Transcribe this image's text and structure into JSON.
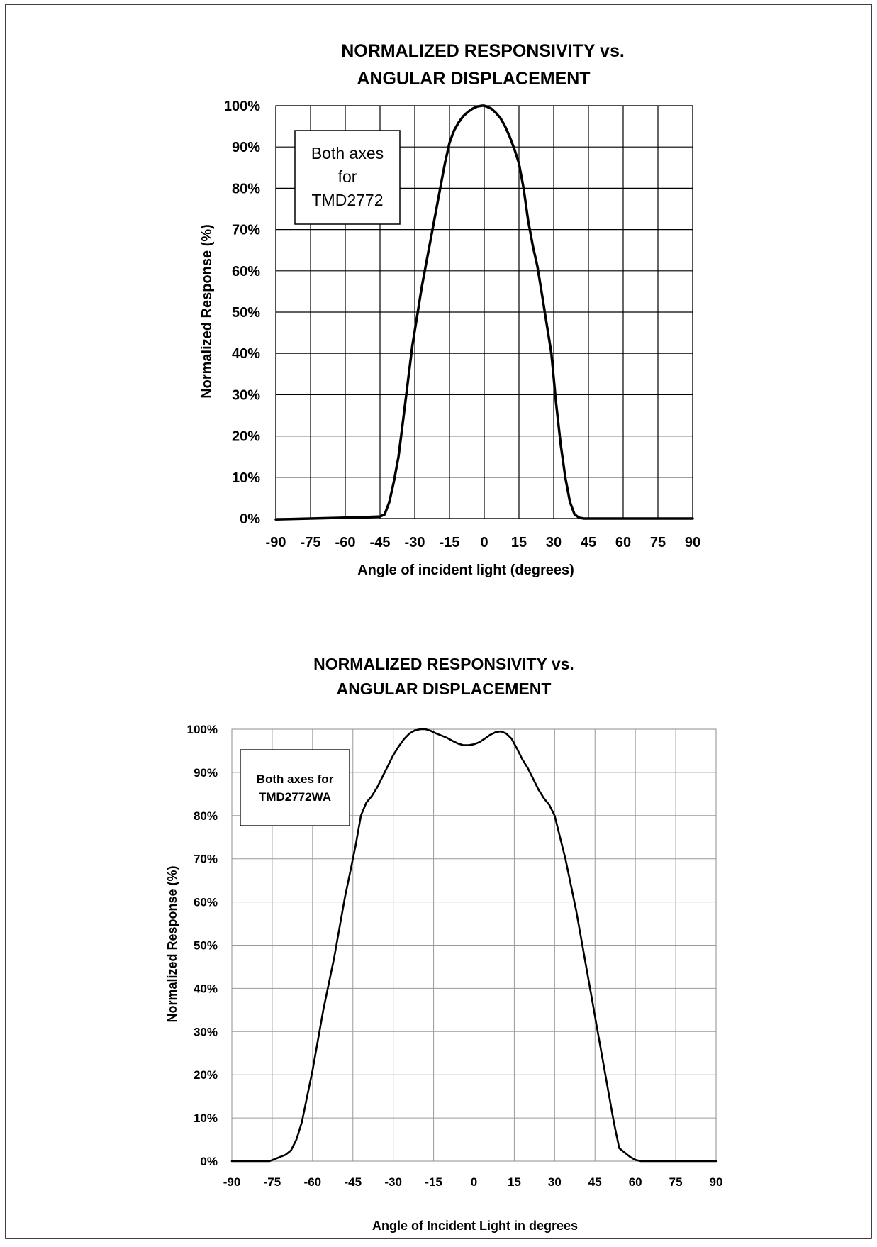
{
  "chart_data": [
    {
      "type": "line",
      "title": "NORMALIZED RESPONSIVITY vs. ANGULAR DISPLACEMENT",
      "title_lines": [
        "NORMALIZED RESPONSIVITY vs.",
        "ANGULAR DISPLACEMENT"
      ],
      "xlabel": "Angle of incident light (degrees)",
      "ylabel": "Normalized Response (%)",
      "annotation_lines": [
        "Both axes",
        "for",
        "TMD2772"
      ],
      "xlim": [
        -90,
        90
      ],
      "ylim": [
        0,
        100
      ],
      "x_ticks": [
        -90,
        -75,
        -60,
        -45,
        -30,
        -15,
        0,
        15,
        30,
        45,
        60,
        75,
        90
      ],
      "y_ticks": [
        0,
        10,
        20,
        30,
        40,
        50,
        60,
        70,
        80,
        90,
        100
      ],
      "y_tick_labels": [
        "0%",
        "10%",
        "20%",
        "30%",
        "40%",
        "50%",
        "60%",
        "70%",
        "80%",
        "90%",
        "100%"
      ],
      "grid": true,
      "x": [
        -90,
        -75,
        -60,
        -50,
        -45,
        -43,
        -41,
        -39,
        -37,
        -35,
        -33,
        -31,
        -29,
        -27,
        -25,
        -23,
        -21,
        -19,
        -17,
        -15,
        -13,
        -11,
        -9,
        -7,
        -5,
        -3,
        -1,
        0,
        1,
        3,
        5,
        7,
        9,
        11,
        13,
        15,
        17,
        19,
        21,
        23,
        25,
        27,
        29,
        31,
        33,
        35,
        37,
        39,
        41,
        43,
        45,
        60,
        75,
        90
      ],
      "y": [
        -0.2,
        0,
        0.2,
        0.4,
        0.5,
        1,
        4,
        9,
        15,
        24,
        33,
        42,
        49,
        56,
        62,
        68,
        74,
        80,
        86,
        91,
        94,
        96,
        97.5,
        98.5,
        99.3,
        99.8,
        100,
        100,
        99.8,
        99.3,
        98.3,
        97,
        95,
        92.5,
        89.5,
        86,
        80,
        72,
        66,
        61,
        54,
        47,
        40,
        28,
        18,
        10,
        4,
        1,
        0.2,
        0,
        0,
        0,
        0,
        0
      ]
    },
    {
      "type": "line",
      "title": "NORMALIZED RESPONSIVITY vs. ANGULAR DISPLACEMENT",
      "title_lines": [
        "NORMALIZED RESPONSIVITY vs.",
        "ANGULAR DISPLACEMENT"
      ],
      "xlabel": "Angle of Incident Light in degrees",
      "ylabel": "Normalized Response (%)",
      "annotation_lines": [
        "Both axes for",
        "TMD2772WA"
      ],
      "xlim": [
        -90,
        90
      ],
      "ylim": [
        0,
        100
      ],
      "x_ticks": [
        -90,
        -75,
        -60,
        -45,
        -30,
        -15,
        0,
        15,
        30,
        45,
        60,
        75,
        90
      ],
      "y_ticks": [
        0,
        10,
        20,
        30,
        40,
        50,
        60,
        70,
        80,
        90,
        100
      ],
      "y_tick_labels": [
        "0%",
        "10%",
        "20%",
        "30%",
        "40%",
        "50%",
        "60%",
        "70%",
        "80%",
        "90%",
        "100%"
      ],
      "grid": true,
      "x": [
        -90,
        -76,
        -74,
        -72,
        -70,
        -68,
        -66,
        -64,
        -62,
        -60,
        -58,
        -56,
        -54,
        -52,
        -50,
        -48,
        -46,
        -44,
        -42,
        -40,
        -38,
        -36,
        -34,
        -32,
        -30,
        -28,
        -26,
        -24,
        -22,
        -20,
        -18,
        -16,
        -14,
        -12,
        -10,
        -8,
        -6,
        -4,
        -2,
        0,
        2,
        4,
        6,
        8,
        10,
        12,
        14,
        16,
        18,
        20,
        22,
        24,
        26,
        28,
        30,
        32,
        34,
        36,
        38,
        40,
        42,
        44,
        46,
        48,
        50,
        52,
        54,
        56,
        58,
        60,
        62,
        64,
        66,
        68,
        70,
        72,
        74,
        76,
        90
      ],
      "y": [
        0,
        0,
        0.5,
        1,
        1.5,
        2.5,
        5,
        9,
        15,
        21,
        28,
        35,
        41,
        47,
        54,
        61,
        67,
        73,
        80,
        83,
        84.5,
        86.5,
        89,
        91.5,
        94,
        96,
        97.7,
        99,
        99.7,
        100,
        100,
        99.6,
        99,
        98.5,
        98,
        97.3,
        96.7,
        96.3,
        96.3,
        96.5,
        97,
        97.8,
        98.7,
        99.3,
        99.5,
        99,
        97.8,
        95.5,
        93,
        91,
        88.5,
        86,
        84,
        82.5,
        80,
        75,
        70,
        64,
        58,
        51,
        44,
        37,
        30,
        23,
        16,
        9,
        3,
        2,
        1,
        0.3,
        0,
        0,
        0,
        0,
        0,
        0,
        0,
        0,
        0
      ]
    }
  ]
}
